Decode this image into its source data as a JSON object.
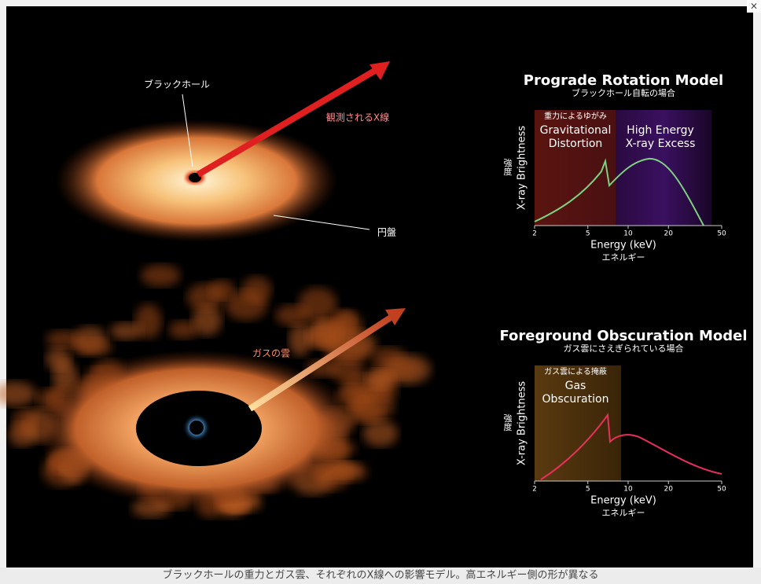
{
  "close_button": "×",
  "illustration": {
    "black_hole_label": "ブラックホール",
    "xray_label": "観測されるX線",
    "disk_label": "円盤",
    "gas_cloud_label": "ガスの雲"
  },
  "charts": [
    {
      "title": "Prograde Rotation Model",
      "subtitle": "ブラックホール自転の場合",
      "annotations": [
        {
          "ja": "重力によるゆがみ",
          "en": [
            "Gravitational",
            "Distortion"
          ]
        },
        {
          "en": [
            "High Energy",
            "X-ray Excess"
          ]
        }
      ],
      "y_label_ja": "強度",
      "y_label": "X-ray Brightness",
      "x_label": "Energy (keV)",
      "x_label_ja": "エネルギー",
      "log_x": true,
      "xlim": [
        2,
        50
      ],
      "xticks": [
        2,
        5,
        10,
        20,
        50
      ]
    },
    {
      "title": "Foreground Obscuration Model",
      "subtitle": "ガス雲にさえぎられている場合",
      "annotations": [
        {
          "ja": "ガス雲による掩蔽",
          "en": [
            "Gas",
            "Obscuration"
          ]
        }
      ],
      "y_label_ja": "強度",
      "y_label": "X-ray Brightness",
      "x_label": "Energy (keV)",
      "x_label_ja": "エネルギー",
      "log_x": true,
      "xlim": [
        2,
        50
      ],
      "xticks": [
        2,
        5,
        10,
        20,
        50
      ]
    }
  ],
  "caption": "ブラックホールの重力とガス雲、それぞれのX線への影響モデル。高エネルギー側の形が異なる"
}
